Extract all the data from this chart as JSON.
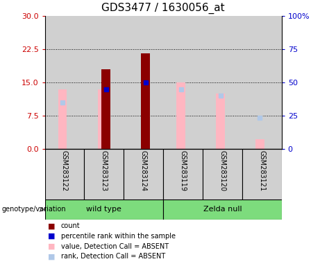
{
  "title": "GDS3477 / 1630056_at",
  "categories": [
    "GSM283122",
    "GSM283123",
    "GSM283124",
    "GSM283119",
    "GSM283120",
    "GSM283121"
  ],
  "left_ylim": [
    0,
    30
  ],
  "right_ylim": [
    0,
    100
  ],
  "left_yticks": [
    0,
    7.5,
    15,
    22.5,
    30
  ],
  "right_yticks": [
    0,
    25,
    50,
    75,
    100
  ],
  "right_yticklabels": [
    "0",
    "25",
    "50",
    "75",
    "100%"
  ],
  "dotted_lines": [
    7.5,
    15,
    22.5
  ],
  "red_bars": [
    null,
    18.0,
    21.5,
    null,
    null,
    null
  ],
  "blue_dots": [
    null,
    13.5,
    15.0,
    null,
    null,
    null
  ],
  "pink_bars": [
    13.5,
    13.5,
    null,
    15.0,
    12.5,
    2.2
  ],
  "light_blue_dots": [
    10.5,
    null,
    null,
    13.5,
    12.0,
    7.0
  ],
  "gray_bg": "#d0d0d0",
  "green_bg": "#7ddc7d",
  "left_label_color": "#cc0000",
  "right_label_color": "#0000cc",
  "title_fontsize": 11,
  "legend_items": [
    {
      "label": "count",
      "color": "#8b0000"
    },
    {
      "label": "percentile rank within the sample",
      "color": "#0000cc"
    },
    {
      "label": "value, Detection Call = ABSENT",
      "color": "#ffb6c1"
    },
    {
      "label": "rank, Detection Call = ABSENT",
      "color": "#b0c8e8"
    }
  ]
}
